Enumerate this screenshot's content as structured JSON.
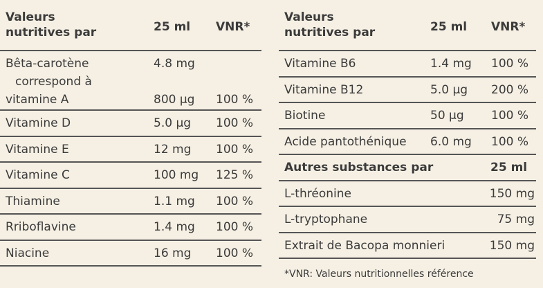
{
  "left": {
    "header": [
      "Valeurs\nnutritives par",
      "25 ml",
      "VNR*"
    ],
    "rows": [
      {
        "lines": [
          [
            "Bêta-carotène",
            "4.8 mg"
          ],
          [
            "correspond à"
          ],
          [
            "vitamine A",
            "800 µg",
            "100 %"
          ]
        ]
      },
      [
        "Vitamine D",
        "5.0 µg",
        "100 %"
      ],
      [
        "Vitamine E",
        "12 mg",
        "100 %"
      ],
      [
        "Vitamine C",
        "100 mg",
        "125 %"
      ],
      [
        "Thiamine",
        "1.1 mg",
        "100 %"
      ],
      [
        "Rriboflavine",
        "1.4 mg",
        "100 %"
      ],
      [
        "Niacine",
        "16 mg",
        "100 %"
      ]
    ]
  },
  "right": {
    "header": [
      "Valeurs\nnutritives par",
      "25 ml",
      "VNR*"
    ],
    "rows": [
      [
        "Vitamine B6",
        "1.4 mg",
        "100 %"
      ],
      [
        "Vitamine B12",
        "5.0 µg",
        "200 %"
      ],
      [
        "Biotine",
        "50 µg",
        "100 %"
      ],
      [
        "Acide pantothénique",
        "6.0 mg",
        "100 %"
      ],
      {
        "section": [
          "Autres substances par",
          "25 ml"
        ]
      },
      {
        "item": [
          "L-thréonine",
          "150 mg"
        ]
      },
      {
        "item": [
          "L-tryptophane",
          "75 mg"
        ]
      },
      {
        "item": [
          "Extrait de Bacopa monnieri",
          "150 mg"
        ]
      }
    ]
  },
  "footnote": "*VNR: Valeurs nutritionnelles référence"
}
